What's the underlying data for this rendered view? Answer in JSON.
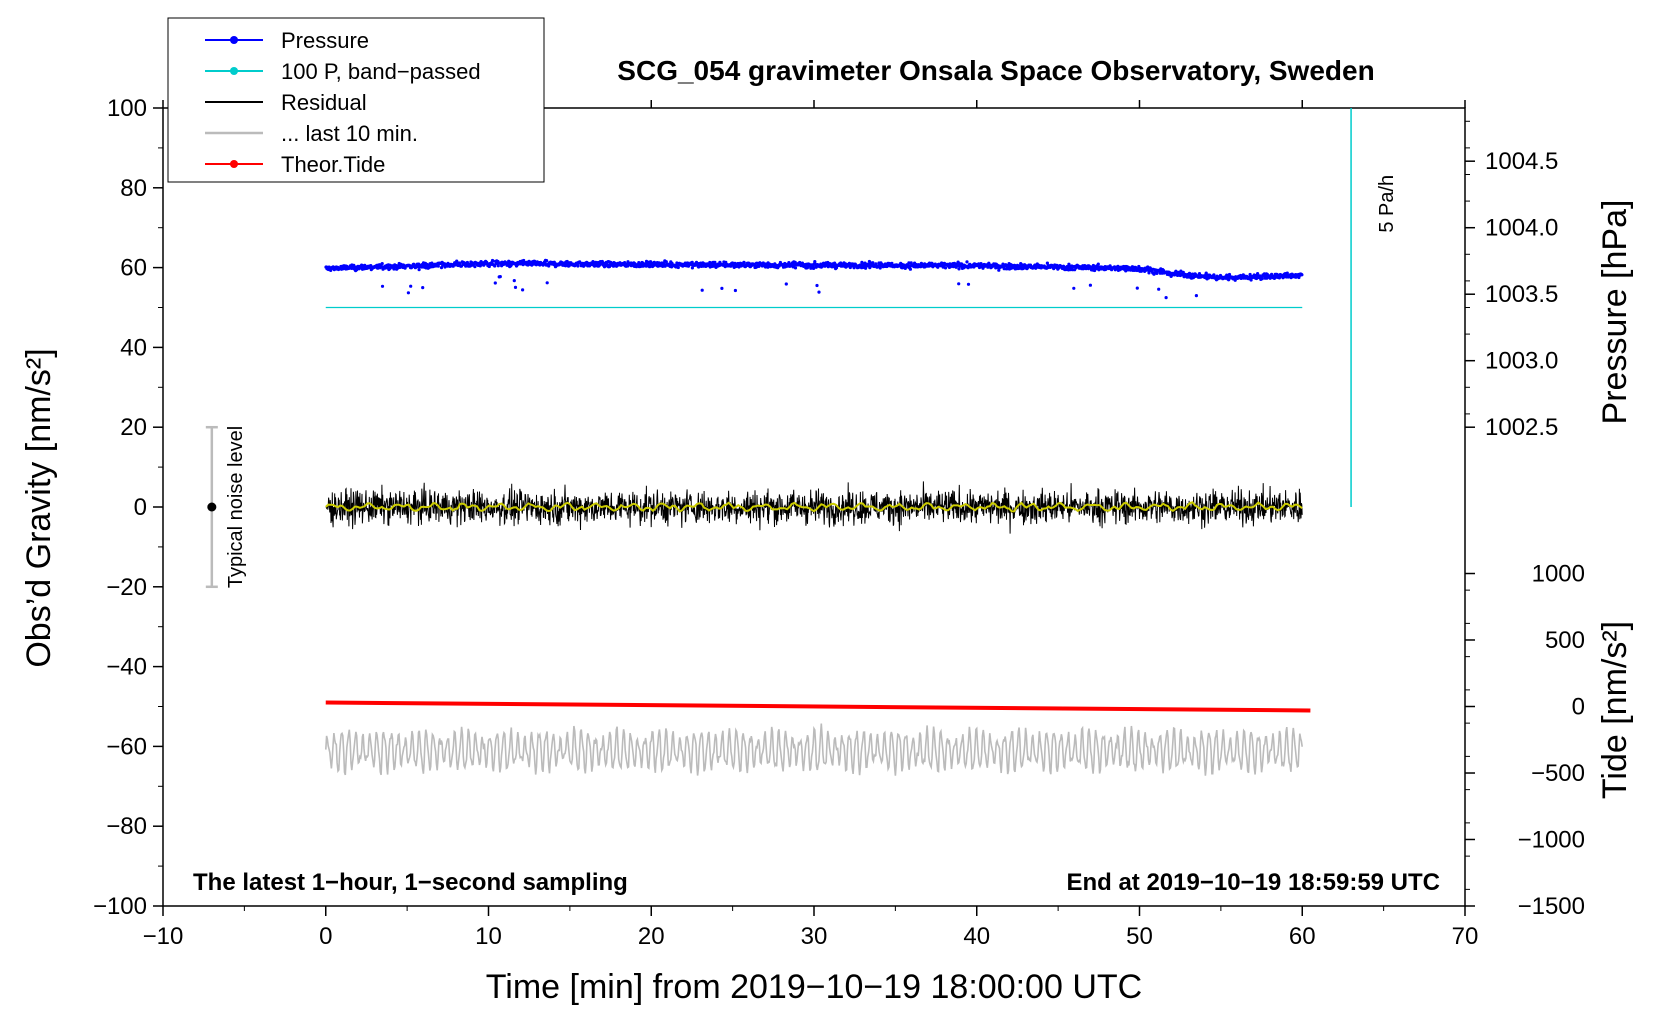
{
  "chart_data": {
    "type": "line",
    "title": "SCG_054 gravimeter Onsala Space Observatory, Sweden",
    "xlabel": "Time [min] from 2019−10−19 18:00:00 UTC",
    "ylabel": "Obs’d Gravity [nm/s²]",
    "ylabel_right_pressure": "Pressure [hPa]",
    "ylabel_right_tide": "Tide [nm/s²]",
    "xlim": [
      -10,
      70
    ],
    "ylim": [
      -100,
      100
    ],
    "pressure_axis": {
      "ticks": [
        1002.5,
        1003.0,
        1003.5,
        1004.0,
        1004.5
      ],
      "tick_labels": [
        "1002.5",
        "1003.0",
        "1003.5",
        "1004.0",
        "1004.5"
      ],
      "gravity_equiv": [
        20,
        36.67,
        53.33,
        70,
        86.67
      ]
    },
    "tide_axis": {
      "ticks": [
        -1500,
        -1000,
        -500,
        0,
        500,
        1000
      ],
      "tick_labels": [
        "−1500",
        "−1000",
        "−500",
        "0",
        "500",
        "1000"
      ],
      "gravity_equiv": [
        -100,
        -83.33,
        -66.67,
        -50,
        -33.33,
        -16.67
      ]
    },
    "x_ticks": [
      -10,
      0,
      10,
      20,
      30,
      40,
      50,
      60,
      70
    ],
    "x_tick_labels": [
      "−10",
      "0",
      "10",
      "20",
      "30",
      "40",
      "50",
      "60",
      "70"
    ],
    "y_ticks": [
      -100,
      -80,
      -60,
      -40,
      -20,
      0,
      20,
      40,
      60,
      80,
      100
    ],
    "y_tick_labels": [
      "−100",
      "−80",
      "−60",
      "−40",
      "−20",
      "0",
      "20",
      "40",
      "60",
      "80",
      "100"
    ],
    "legend": {
      "position": "top-left",
      "entries": [
        {
          "name": "Pressure",
          "color": "#0000ff",
          "marker": "dot"
        },
        {
          "name": "100 P, band−passed",
          "color": "#00cccc",
          "marker": "dot"
        },
        {
          "name": "Residual",
          "color": "#000000",
          "marker": "none"
        },
        {
          "name": "... last 10 min.",
          "color": "#bbbbbb",
          "marker": "none"
        },
        {
          "name": "Theor.Tide",
          "color": "#ff0000",
          "marker": "dot"
        }
      ]
    },
    "series": [
      {
        "name": "Pressure",
        "style": "points",
        "color": "#0000ff",
        "x_range": [
          0,
          60
        ],
        "y_profile": {
          "x": [
            0,
            10,
            20,
            30,
            40,
            50,
            52,
            55,
            60
          ],
          "y": [
            59.8,
            61.0,
            60.8,
            60.6,
            60.5,
            59.8,
            58.5,
            57.5,
            58.0
          ]
        },
        "spread": 1.2
      },
      {
        "name": "100 P, band−passed",
        "style": "line",
        "color": "#00cccc",
        "x": [
          0,
          60
        ],
        "y": [
          50,
          50
        ]
      },
      {
        "name": "Residual",
        "style": "noise",
        "color": "#000000",
        "x_range": [
          0,
          60
        ],
        "center": 0,
        "amplitude": 6,
        "range": [
          -12,
          12
        ]
      },
      {
        "name": "Residual smoothed",
        "style": "smooth",
        "color": "#cccc00",
        "x_range": [
          0,
          60
        ],
        "center": 0,
        "amplitude": 1
      },
      {
        "name": "... last 10 min.",
        "style": "oscillation",
        "color": "#bbbbbb",
        "x_range": [
          0,
          60
        ],
        "center": -61,
        "amplitude": 5,
        "range": [
          -74,
          -49
        ]
      },
      {
        "name": "Theor.Tide",
        "style": "line",
        "color": "#ff0000",
        "x": [
          0,
          60.5
        ],
        "y": [
          -49.0,
          -51.0
        ]
      }
    ],
    "rate_marker": {
      "label": "5 Pa/h",
      "color": "#00cccc",
      "x": 63,
      "y": [
        0,
        100
      ]
    },
    "noise_level": {
      "label": "Typical noise level",
      "x": -7,
      "center": 0,
      "range": [
        -20,
        20
      ]
    },
    "annotation_left": "The latest 1−hour, 1−second sampling",
    "annotation_right": "End at 2019−10−19 18:59:59 UTC"
  }
}
